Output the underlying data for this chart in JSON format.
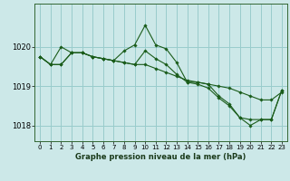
{
  "title": "Graphe pression niveau de la mer (hPa)",
  "bg_color": "#cce8e8",
  "grid_color": "#99cccc",
  "line_color": "#1a5c1a",
  "xlim": [
    -0.5,
    23.5
  ],
  "ylim": [
    1017.6,
    1021.1
  ],
  "yticks": [
    1018,
    1019,
    1020
  ],
  "xticks": [
    0,
    1,
    2,
    3,
    4,
    5,
    6,
    7,
    8,
    9,
    10,
    11,
    12,
    13,
    14,
    15,
    16,
    17,
    18,
    19,
    20,
    21,
    22,
    23
  ],
  "series": [
    [
      1019.75,
      1019.55,
      1019.55,
      1019.85,
      1019.85,
      1019.75,
      1019.7,
      1019.65,
      1019.6,
      1019.55,
      1019.55,
      1019.45,
      1019.35,
      1019.25,
      1019.15,
      1019.1,
      1019.05,
      1019.0,
      1018.95,
      1018.85,
      1018.75,
      1018.65,
      1018.65,
      1018.85
    ],
    [
      1019.75,
      1019.55,
      1020.0,
      1019.85,
      1019.85,
      1019.75,
      1019.7,
      1019.65,
      1019.9,
      1020.05,
      1020.55,
      1020.05,
      1019.95,
      1019.6,
      1019.1,
      1019.1,
      1019.05,
      1018.75,
      1018.55,
      1018.2,
      1018.0,
      1018.15,
      1018.15,
      1018.9
    ],
    [
      1019.75,
      1019.55,
      1019.55,
      1019.85,
      1019.85,
      1019.75,
      1019.7,
      1019.65,
      1019.6,
      1019.55,
      1019.9,
      1019.7,
      1019.55,
      1019.3,
      1019.1,
      1019.05,
      1018.95,
      1018.7,
      1018.5,
      1018.2,
      1018.15,
      1018.15,
      1018.15,
      1018.9
    ]
  ]
}
